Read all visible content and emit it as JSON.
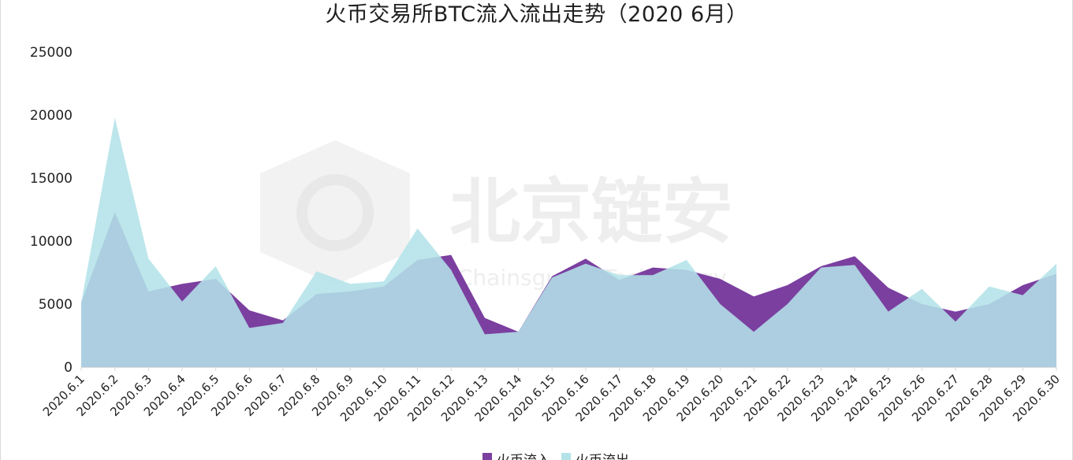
{
  "chart_data": {
    "type": "area",
    "title": "火币交易所BTC流入流出走势（2020 6月）",
    "xlabel": "",
    "ylabel": "",
    "ylim": [
      0,
      25000
    ],
    "yticks": [
      0,
      5000,
      10000,
      15000,
      20000,
      25000
    ],
    "grid": false,
    "legend_position": "bottom",
    "categories": [
      "2020.6.1",
      "2020.6.2",
      "2020.6.3",
      "2020.6.4",
      "2020.6.5",
      "2020.6.6",
      "2020.6.7",
      "2020.6.8",
      "2020.6.9",
      "2020.6.10",
      "2020.6.11",
      "2020.6.12",
      "2020.6.13",
      "2020.6.14",
      "2020.6.15",
      "2020.6.16",
      "2020.6.17",
      "2020.6.18",
      "2020.6.19",
      "2020.6.20",
      "2020.6.21",
      "2020.6.22",
      "2020.6.23",
      "2020.6.24",
      "2020.6.25",
      "2020.6.26",
      "2020.6.27",
      "2020.6.28",
      "2020.6.29",
      "2020.6.30"
    ],
    "series": [
      {
        "name": "火币流入",
        "color": "#7b3fa0",
        "values": [
          5100,
          12300,
          6000,
          6600,
          7000,
          4500,
          3700,
          5800,
          6000,
          6400,
          8500,
          8900,
          3900,
          2800,
          7200,
          8600,
          6900,
          7900,
          7700,
          7000,
          5600,
          6500,
          8000,
          8800,
          6300,
          5000,
          4400,
          5000,
          6500,
          7400
        ]
      },
      {
        "name": "火币流出",
        "color": "#b3e3e8",
        "values": [
          5100,
          19800,
          8600,
          5200,
          8000,
          3100,
          3500,
          7600,
          6600,
          6800,
          11000,
          7700,
          2600,
          2800,
          7100,
          8200,
          7300,
          7300,
          8500,
          5000,
          2800,
          5000,
          7900,
          8100,
          4400,
          6200,
          3600,
          6400,
          5700,
          8200
        ]
      }
    ]
  },
  "watermark": {
    "text": "北京链安",
    "subtext": "Chainsguard Technology"
  }
}
